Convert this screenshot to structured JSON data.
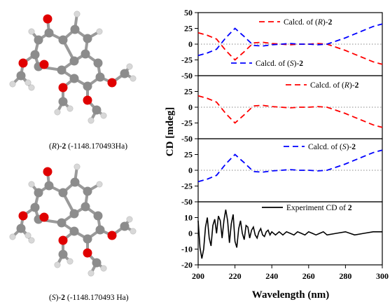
{
  "molecules": [
    {
      "label_italic": "R",
      "label_tail": ")-",
      "label_bold": "2",
      "label_energy": " (-1148.170493Ha)"
    },
    {
      "label_italic": "S",
      "label_tail": ")-",
      "label_bold": "2",
      "label_energy": " (-1148.170493 Ha)"
    }
  ],
  "colors": {
    "red": "#ff0000",
    "blue": "#0000ff",
    "black": "#000000",
    "atom_gray": "#8c8c8c",
    "atom_light": "#d8d8d8",
    "atom_red": "#e00000"
  },
  "chart_data": {
    "type": "line",
    "xlabel": "Wavelength (nm)",
    "ylabel": "CD [mdeg]",
    "xlim": [
      200,
      300
    ],
    "xticks": [
      "200",
      "220",
      "240",
      "260",
      "280",
      "300"
    ],
    "panels": [
      {
        "ylim": [
          -50,
          50
        ],
        "yticks": [
          "-50",
          "-25",
          "0",
          "25",
          "50"
        ],
        "legend_position": "top-right and bottom-center",
        "series": [
          {
            "name": "Calcd. of (R)-2",
            "name_prefix": "Calcd. of (",
            "name_italic": "R",
            "name_suffix": ")-",
            "name_bold": "2",
            "color": "#ff0000",
            "style": "dashed",
            "x": [
              200,
              205,
              210,
              215,
              220,
              225,
              230,
              235,
              240,
              245,
              250,
              255,
              260,
              265,
              270,
              275,
              280,
              285,
              290,
              295,
              300
            ],
            "y": [
              18,
              14,
              8,
              -10,
              -25,
              -12,
              2,
              3,
              1,
              0,
              -1,
              0,
              0,
              1,
              0,
              -5,
              -10,
              -16,
              -22,
              -28,
              -32
            ]
          },
          {
            "name": "Calcd. of (S)-2",
            "name_prefix": "Calcd. of (",
            "name_italic": "S",
            "name_suffix": ")-",
            "name_bold": "2",
            "color": "#0000ff",
            "style": "dashed",
            "x": [
              200,
              205,
              210,
              215,
              220,
              225,
              230,
              235,
              240,
              245,
              250,
              255,
              260,
              265,
              270,
              275,
              280,
              285,
              290,
              295,
              300
            ],
            "y": [
              -18,
              -14,
              -8,
              10,
              25,
              12,
              -2,
              -3,
              -1,
              0,
              1,
              0,
              0,
              -1,
              0,
              5,
              10,
              16,
              22,
              28,
              32
            ]
          }
        ]
      },
      {
        "ylim": [
          -50,
          50
        ],
        "yticks": [
          "-50",
          "-25",
          "0",
          "25"
        ],
        "legend_position": "top-right",
        "series": [
          {
            "name": "Calcd. of (R)-2",
            "name_prefix": "Calcd. of (",
            "name_italic": "R",
            "name_suffix": ")-",
            "name_bold": "2",
            "color": "#ff0000",
            "style": "dashed",
            "x": [
              200,
              205,
              210,
              215,
              220,
              225,
              230,
              235,
              240,
              245,
              250,
              255,
              260,
              265,
              270,
              275,
              280,
              285,
              290,
              295,
              300
            ],
            "y": [
              18,
              14,
              8,
              -10,
              -25,
              -12,
              2,
              3,
              1,
              0,
              -1,
              0,
              0,
              1,
              0,
              -5,
              -10,
              -16,
              -22,
              -28,
              -32
            ]
          }
        ]
      },
      {
        "ylim": [
          -50,
          50
        ],
        "yticks": [
          "-50",
          "-25",
          "0",
          "25"
        ],
        "legend_position": "top-right",
        "series": [
          {
            "name": "Calcd. of (S)-2",
            "name_prefix": "Calcd. of (",
            "name_italic": "S",
            "name_suffix": ")-",
            "name_bold": "2",
            "color": "#0000ff",
            "style": "dashed",
            "x": [
              200,
              205,
              210,
              215,
              220,
              225,
              230,
              235,
              240,
              245,
              250,
              255,
              260,
              265,
              270,
              275,
              280,
              285,
              290,
              295,
              300
            ],
            "y": [
              -18,
              -14,
              -8,
              10,
              25,
              12,
              -2,
              -3,
              -1,
              0,
              1,
              0,
              0,
              -1,
              0,
              5,
              10,
              16,
              22,
              28,
              32
            ]
          }
        ]
      },
      {
        "ylim": [
          -20,
          20
        ],
        "yticks": [
          "-20",
          "-10",
          "0",
          "10"
        ],
        "legend_position": "top-right",
        "series": [
          {
            "name": "Experiment CD of 2",
            "name_prefix": "Experiment CD of  ",
            "name_italic": "",
            "name_suffix": "",
            "name_bold": "2",
            "color": "#000000",
            "style": "solid",
            "x": [
              200,
              201,
              202,
              203,
              204,
              205,
              206,
              207,
              208,
              209,
              210,
              211,
              212,
              213,
              214,
              215,
              216,
              217,
              218,
              219,
              220,
              221,
              222,
              223,
              224,
              225,
              226,
              227,
              228,
              229,
              230,
              231,
              232,
              233,
              234,
              235,
              236,
              237,
              238,
              239,
              240,
              242,
              244,
              246,
              248,
              250,
              252,
              254,
              256,
              258,
              260,
              262,
              264,
              266,
              268,
              270,
              275,
              280,
              285,
              290,
              295,
              300
            ],
            "y": [
              8,
              -9,
              -16,
              -10,
              4,
              10,
              -3,
              -8,
              5,
              9,
              0,
              11,
              8,
              -3,
              8,
              15,
              8,
              -6,
              6,
              12,
              -5,
              -9,
              3,
              8,
              0,
              -4,
              5,
              4,
              -3,
              2,
              4,
              -1,
              -3,
              1,
              3,
              -1,
              -2,
              1,
              2,
              -1,
              1,
              -1,
              1,
              -1,
              1,
              0,
              -1,
              1,
              0,
              -1,
              1,
              0,
              -1,
              0,
              1,
              -1,
              0,
              1,
              -1,
              0,
              1,
              1
            ]
          }
        ]
      }
    ]
  }
}
